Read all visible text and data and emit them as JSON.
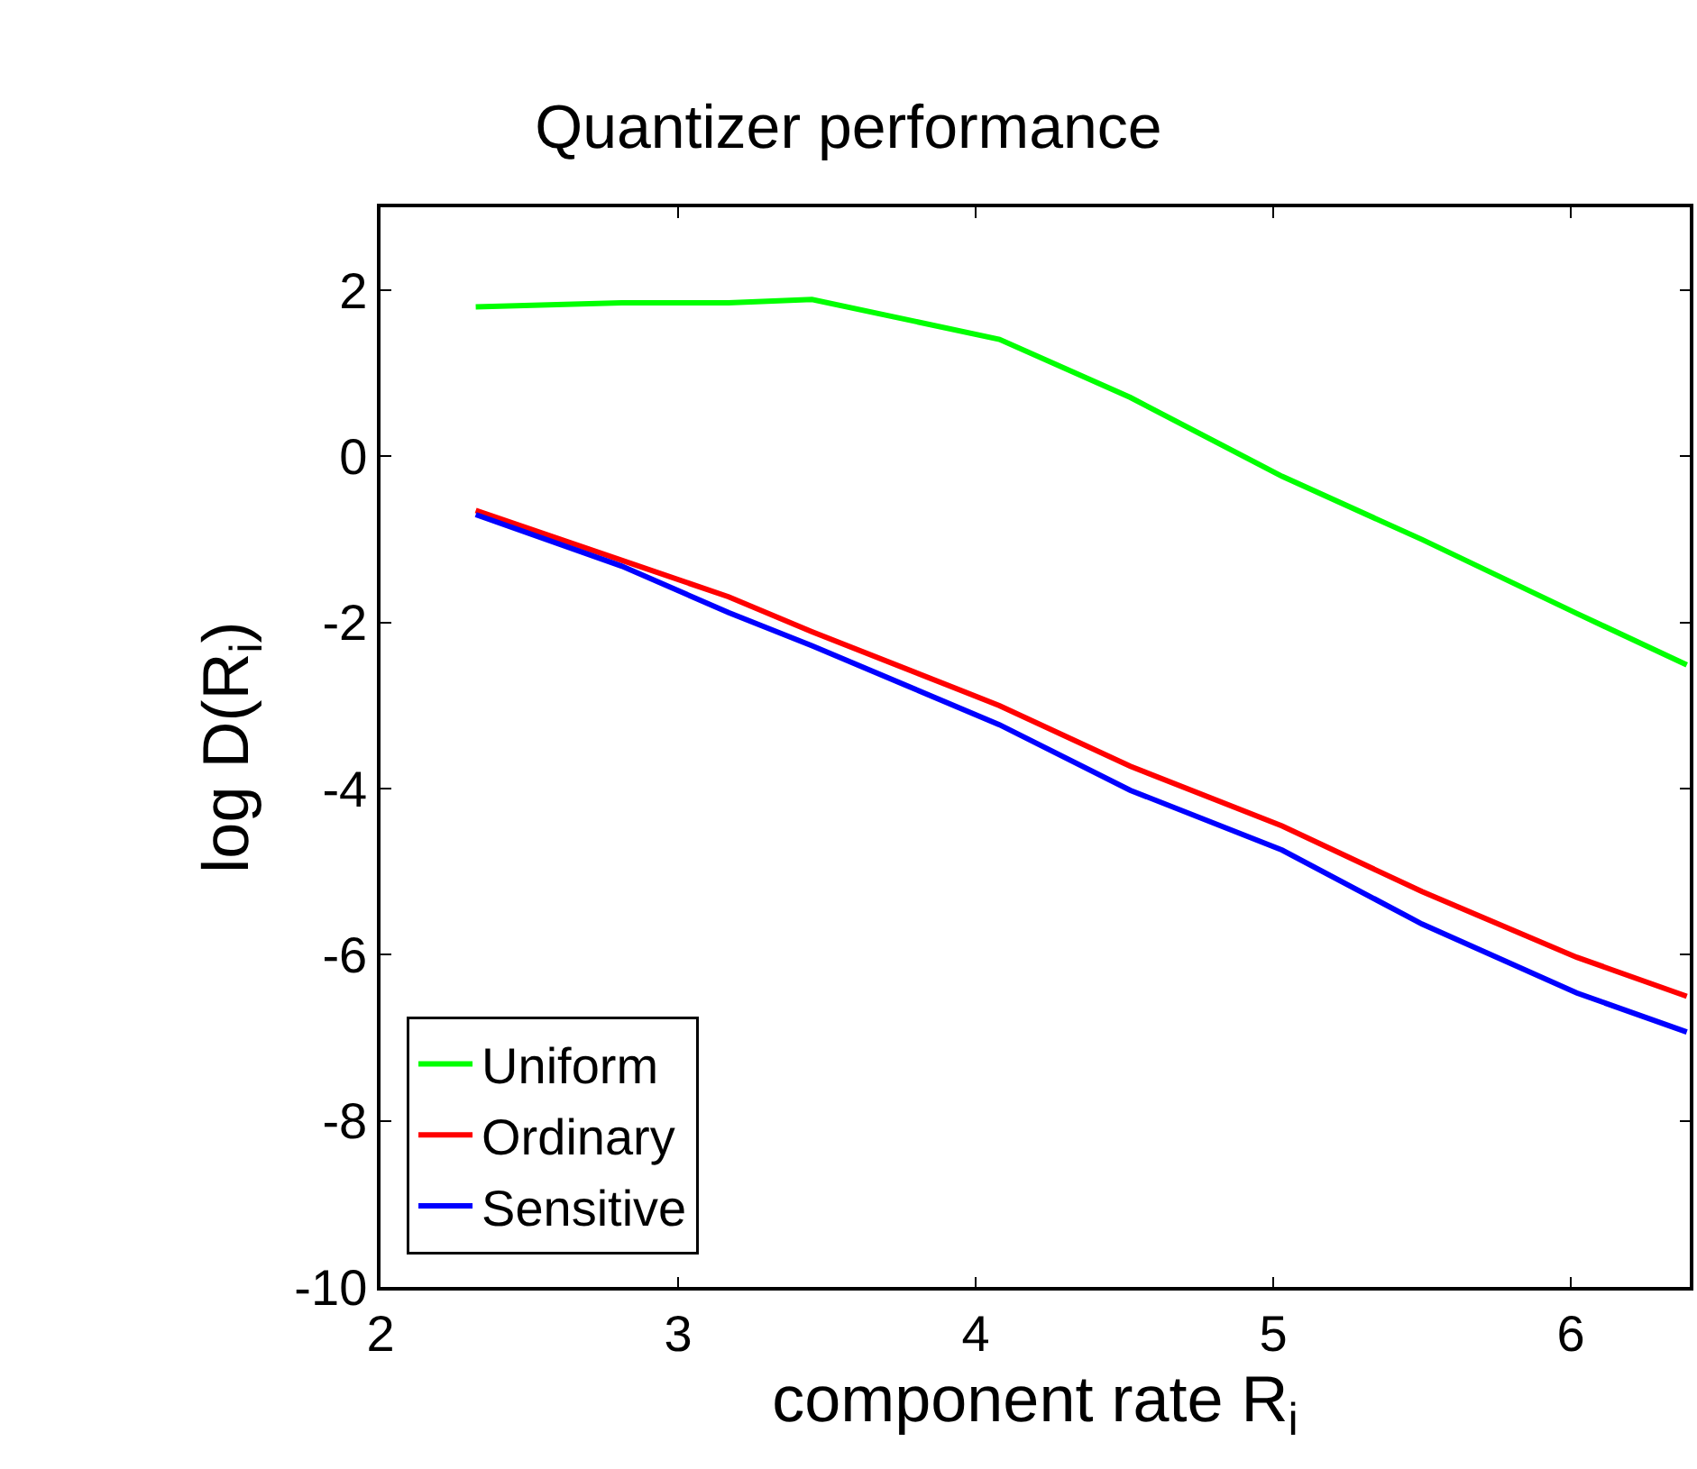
{
  "chart_data": {
    "type": "line",
    "title": "Quantizer performance",
    "xlabel": "component rate R$_{i}$",
    "ylabel": "log D(R$_{i}$)",
    "x": [
      2.32,
      2.81,
      3.17,
      3.45,
      4.08,
      4.52,
      5.03,
      5.5,
      6.02,
      6.39
    ],
    "series": [
      {
        "name": "Uniform",
        "color": "#00ff00",
        "values": [
          1.8,
          1.85,
          1.85,
          1.89,
          1.41,
          0.71,
          -0.24,
          -1.0,
          -1.89,
          -2.51
        ]
      },
      {
        "name": "Ordinary",
        "color": "#ff0000",
        "values": [
          -0.65,
          -1.25,
          -1.69,
          -2.11,
          -3.0,
          -3.73,
          -4.45,
          -5.24,
          -6.03,
          -6.5
        ]
      },
      {
        "name": "Sensitive",
        "color": "#0000ff",
        "values": [
          -0.7,
          -1.32,
          -1.88,
          -2.28,
          -3.23,
          -4.02,
          -4.74,
          -5.63,
          -6.46,
          -6.93
        ]
      }
    ],
    "xlim": [
      2,
      6.4
    ],
    "xticks": [
      2,
      3,
      4,
      5,
      6
    ],
    "ylim": [
      -10,
      3
    ],
    "yticks": [
      -10,
      -8,
      -6,
      -4,
      -2,
      0,
      2
    ],
    "legend": "bottom left",
    "marker": "none",
    "line_style": "solid"
  }
}
